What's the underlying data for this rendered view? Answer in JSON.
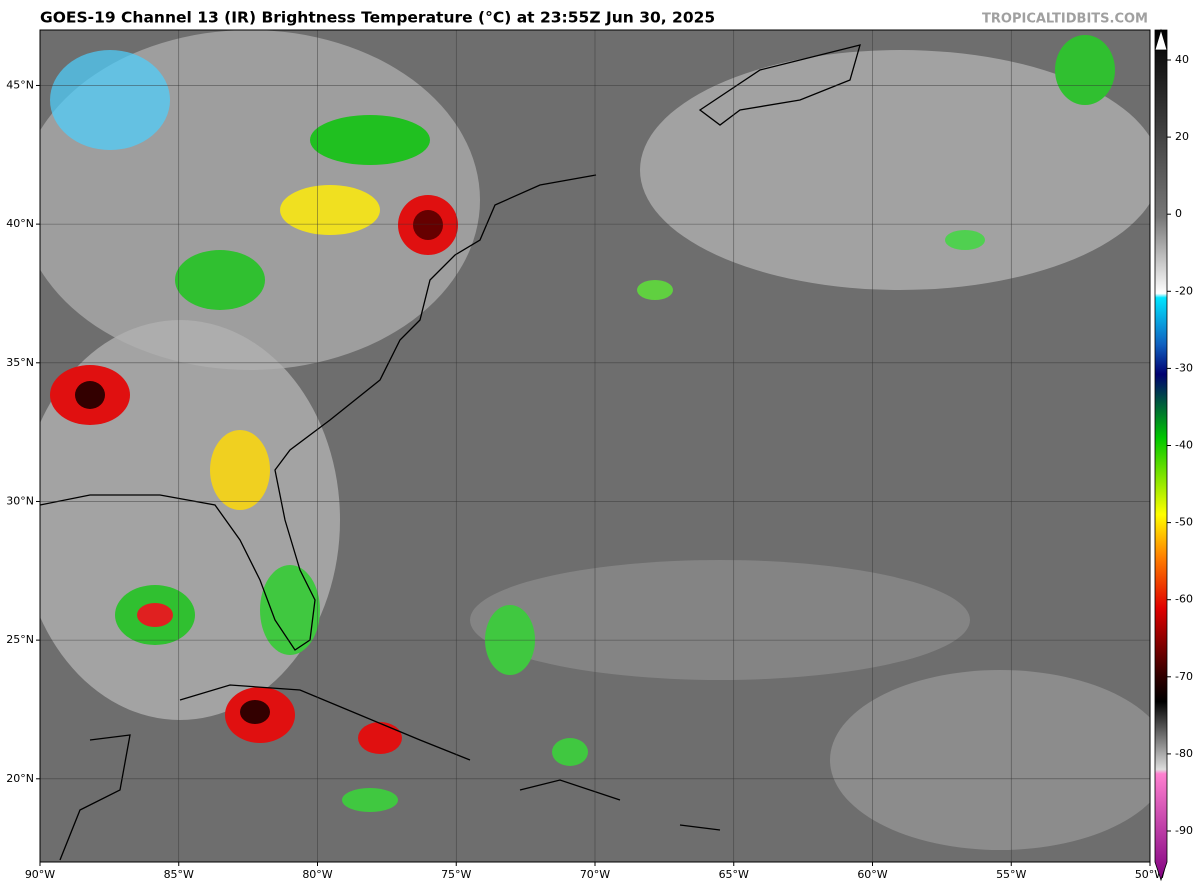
{
  "header": {
    "title": "GOES-19 Channel 13 (IR) Brightness Temperature (°C) at 23:55Z Jun 30, 2025",
    "watermark": "TROPICALTIDBITS.COM"
  },
  "map": {
    "lon_range": [
      -90,
      -50
    ],
    "lat_range": [
      17,
      47
    ],
    "lon_ticks": [
      {
        "value": -90,
        "label": "90°W"
      },
      {
        "value": -85,
        "label": "85°W"
      },
      {
        "value": -80,
        "label": "80°W"
      },
      {
        "value": -75,
        "label": "75°W"
      },
      {
        "value": -70,
        "label": "70°W"
      },
      {
        "value": -65,
        "label": "65°W"
      },
      {
        "value": -60,
        "label": "60°W"
      },
      {
        "value": -55,
        "label": "55°W"
      },
      {
        "value": -50,
        "label": "50°W"
      }
    ],
    "lat_ticks": [
      {
        "value": 45,
        "label": "45°N"
      },
      {
        "value": 40,
        "label": "40°N"
      },
      {
        "value": 35,
        "label": "35°N"
      },
      {
        "value": 30,
        "label": "30°N"
      },
      {
        "value": 25,
        "label": "25°N"
      },
      {
        "value": 20,
        "label": "20°N"
      }
    ]
  },
  "colorbar": {
    "ticks": [
      40,
      20,
      0,
      -20,
      -30,
      -40,
      -50,
      -60,
      -70,
      -80,
      -90
    ]
  }
}
